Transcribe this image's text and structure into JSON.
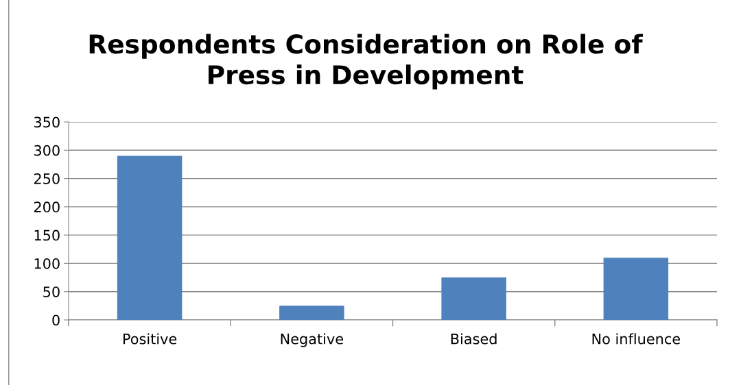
{
  "chart_data": {
    "type": "bar",
    "title": "Respondents Consideration on Role of\nPress in Development",
    "categories": [
      "Positive",
      "Negative",
      "Biased",
      "No influence"
    ],
    "values": [
      290,
      25,
      75,
      110
    ],
    "color": "#4f81bd",
    "ylim": [
      0,
      350
    ],
    "yticks": [
      0,
      50,
      100,
      150,
      200,
      250,
      300,
      350
    ],
    "grid": "y",
    "legend": false
  }
}
